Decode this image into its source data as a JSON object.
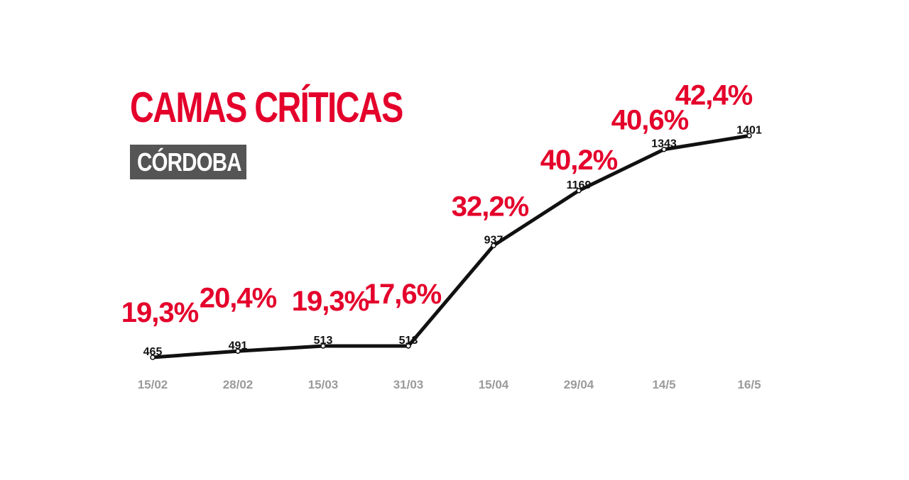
{
  "header": {
    "title": "CAMAS CRÍTICAS",
    "subtitle": "CÓRDOBA"
  },
  "colors": {
    "accent": "#e4002b",
    "line": "#111111",
    "subtitle_bg": "#555555",
    "tick": "#9a9a9a"
  },
  "chart_data": {
    "type": "line",
    "title": "CAMAS CRÍTICAS",
    "subtitle": "CÓRDOBA",
    "xlabel": "",
    "ylabel": "",
    "ylim": [
      450,
      1420
    ],
    "grid": false,
    "legend": "none",
    "categories": [
      "15/02",
      "28/02",
      "15/03",
      "31/03",
      "15/04",
      "29/04",
      "14/5",
      "16/5"
    ],
    "series": [
      {
        "values": [
          465,
          491,
          513,
          513,
          937,
          1169,
          1343,
          1401
        ],
        "data_labels": [
          "465",
          "491",
          "513",
          "513",
          "937",
          "1169",
          "1343",
          "1401"
        ],
        "annotations": [
          "19,3%",
          "20,4%",
          "19,3%",
          "17,6%",
          "32,2%",
          "40,2%",
          "40,6%",
          "42,4%"
        ]
      }
    ]
  }
}
